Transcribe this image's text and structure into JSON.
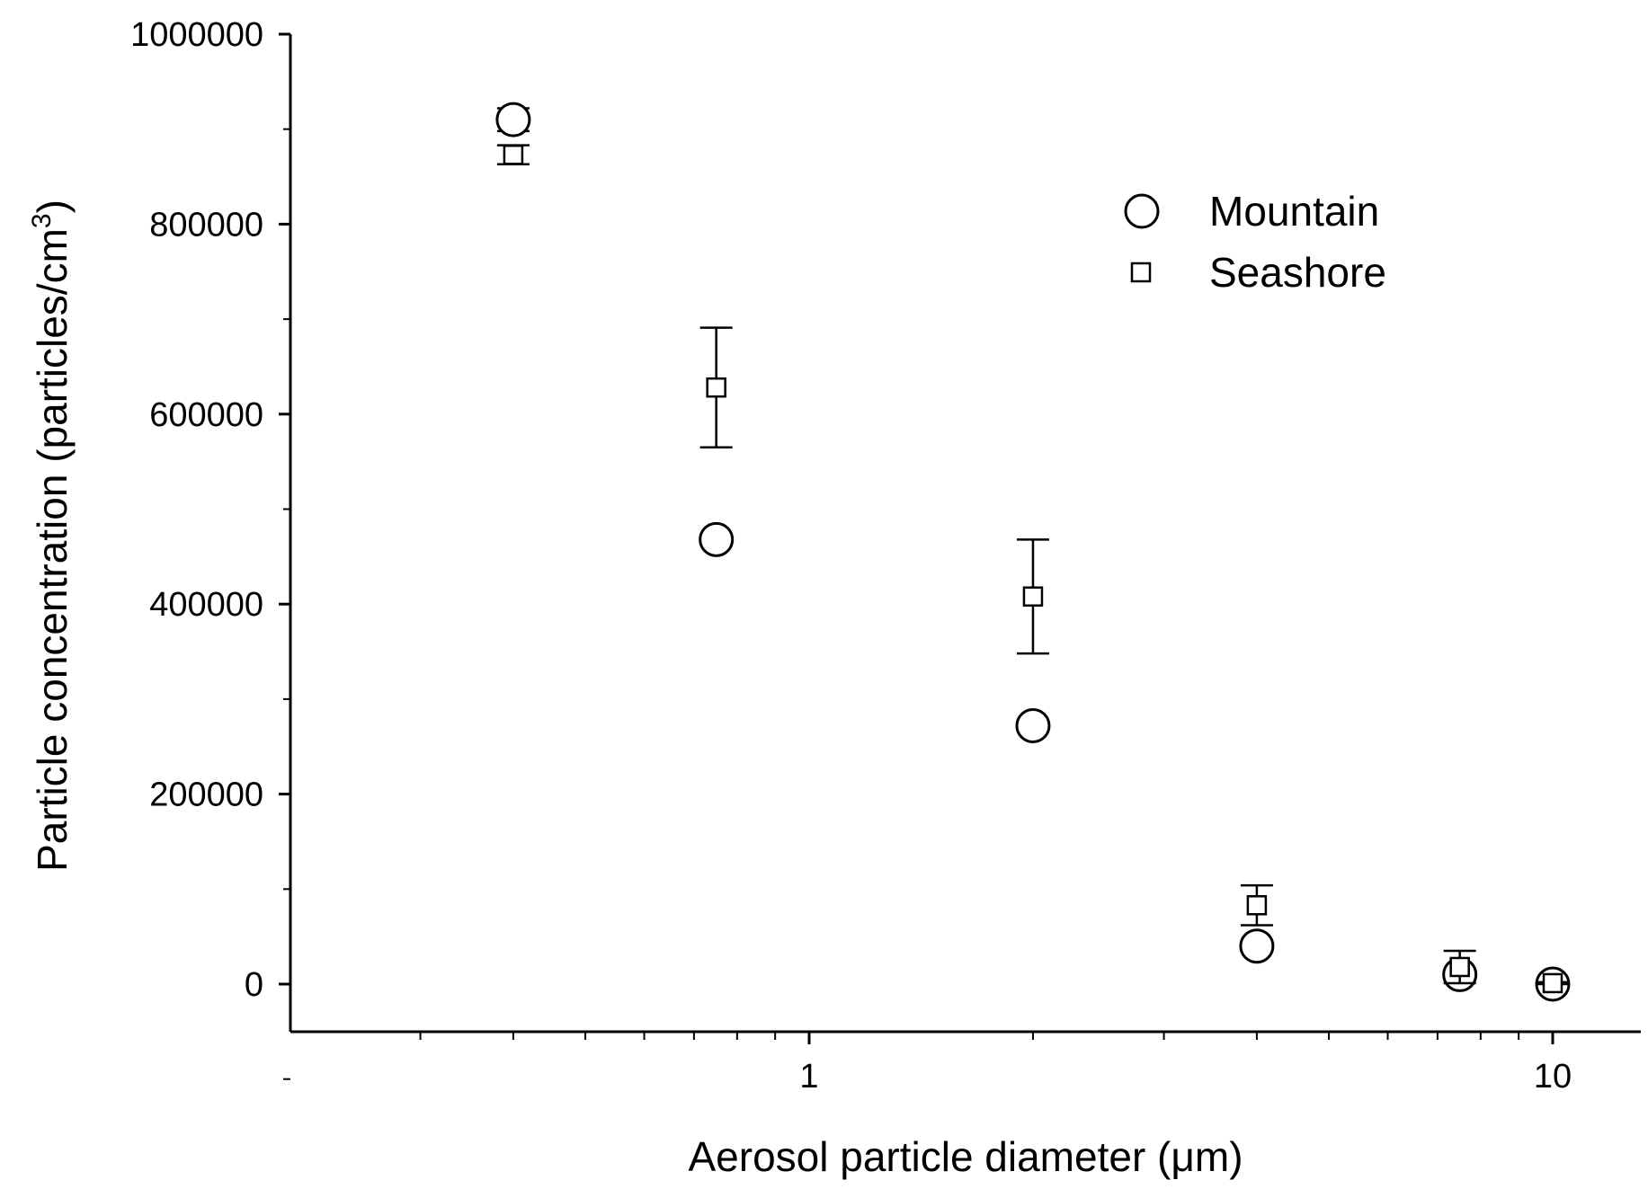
{
  "chart_data": {
    "type": "scatter",
    "xscale": "log",
    "xlim": [
      0.2,
      12
    ],
    "ylim": [
      -100000,
      1000000
    ],
    "xlabel": "Aerosol particle diameter (μm)",
    "ylabel_main": "Particle concentration (particles/cm",
    "ylabel_sup": "3",
    "ylabel_close": ")",
    "x_ticks": [
      1,
      10
    ],
    "x_tick_labels": [
      "1",
      "10"
    ],
    "y_ticks": [
      0,
      200000,
      400000,
      600000,
      800000,
      1000000
    ],
    "y_tick_labels": [
      "0",
      "200000",
      "400000",
      "600000",
      "800000",
      "1000000"
    ],
    "grid": false,
    "legend_position": "top-right",
    "series": [
      {
        "name": "Mountain",
        "marker": "circle",
        "points": [
          {
            "x": 0.4,
            "y": 910000,
            "err": 12000
          },
          {
            "x": 0.75,
            "y": 468000,
            "err": 5000
          },
          {
            "x": 2.0,
            "y": 272000,
            "err": 5000
          },
          {
            "x": 4.0,
            "y": 40000,
            "err": 3000
          },
          {
            "x": 7.5,
            "y": 10000,
            "err": 5000
          },
          {
            "x": 10.0,
            "y": 0,
            "err": 3000
          }
        ]
      },
      {
        "name": "Seashore",
        "marker": "square",
        "points": [
          {
            "x": 0.4,
            "y": 873000,
            "err": 10000
          },
          {
            "x": 0.75,
            "y": 628000,
            "err": 63000
          },
          {
            "x": 2.0,
            "y": 408000,
            "err": 60000
          },
          {
            "x": 4.0,
            "y": 83000,
            "err": 21000
          },
          {
            "x": 7.5,
            "y": 18000,
            "err": 17000
          },
          {
            "x": 10.0,
            "y": 1000,
            "err": 1000
          }
        ]
      }
    ]
  }
}
